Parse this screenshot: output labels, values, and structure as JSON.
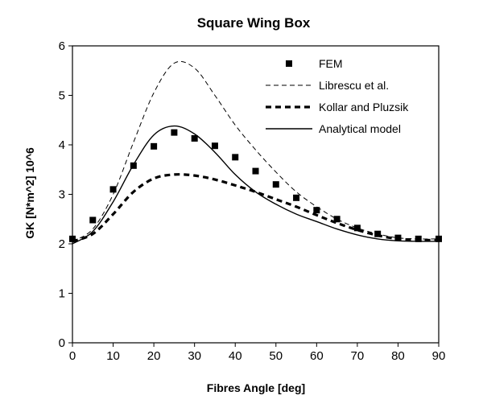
{
  "chart_data": {
    "type": "line",
    "title": "Square Wing Box",
    "xlabel": "Fibres Angle [deg]",
    "ylabel": "GK [N*m^2] 10^6",
    "xlim": [
      0,
      90
    ],
    "ylim": [
      0,
      6
    ],
    "xticks": [
      0,
      10,
      20,
      30,
      40,
      50,
      60,
      70,
      80,
      90
    ],
    "yticks": [
      0,
      1,
      2,
      3,
      4,
      5,
      6
    ],
    "grid": false,
    "legend_position": "top-right",
    "series": [
      {
        "name": "FEM",
        "style": "markers",
        "x": [
          0,
          5,
          10,
          15,
          20,
          25,
          30,
          35,
          40,
          45,
          50,
          55,
          60,
          65,
          70,
          75,
          80,
          85,
          90
        ],
        "y": [
          2.1,
          2.48,
          3.1,
          3.58,
          3.97,
          4.25,
          4.13,
          3.98,
          3.75,
          3.47,
          3.2,
          2.93,
          2.68,
          2.5,
          2.32,
          2.2,
          2.12,
          2.1,
          2.1
        ]
      },
      {
        "name": "Librescu et al.",
        "style": "thin-dashed",
        "x": [
          0,
          5,
          10,
          15,
          20,
          25,
          30,
          35,
          40,
          45,
          50,
          55,
          60,
          65,
          70,
          75,
          80,
          85,
          90
        ],
        "y": [
          2.05,
          2.3,
          3.0,
          4.05,
          5.05,
          5.65,
          5.55,
          5.0,
          4.4,
          3.9,
          3.45,
          3.05,
          2.75,
          2.5,
          2.32,
          2.2,
          2.12,
          2.1,
          2.1
        ]
      },
      {
        "name": "Kollar and Pluzsik",
        "style": "thick-dashed",
        "x": [
          0,
          5,
          10,
          15,
          20,
          25,
          30,
          35,
          40,
          45,
          50,
          55,
          60,
          65,
          70,
          75,
          80,
          85,
          90
        ],
        "y": [
          2.05,
          2.2,
          2.6,
          3.05,
          3.32,
          3.4,
          3.38,
          3.3,
          3.18,
          3.05,
          2.9,
          2.75,
          2.58,
          2.42,
          2.28,
          2.17,
          2.1,
          2.08,
          2.07
        ]
      },
      {
        "name": "Analytical model",
        "style": "solid",
        "x": [
          0,
          5,
          10,
          15,
          20,
          25,
          30,
          35,
          40,
          45,
          50,
          55,
          60,
          65,
          70,
          75,
          80,
          85,
          90
        ],
        "y": [
          2.0,
          2.25,
          2.85,
          3.6,
          4.2,
          4.38,
          4.22,
          3.85,
          3.4,
          3.05,
          2.8,
          2.6,
          2.45,
          2.3,
          2.18,
          2.1,
          2.06,
          2.05,
          2.05
        ]
      }
    ]
  }
}
